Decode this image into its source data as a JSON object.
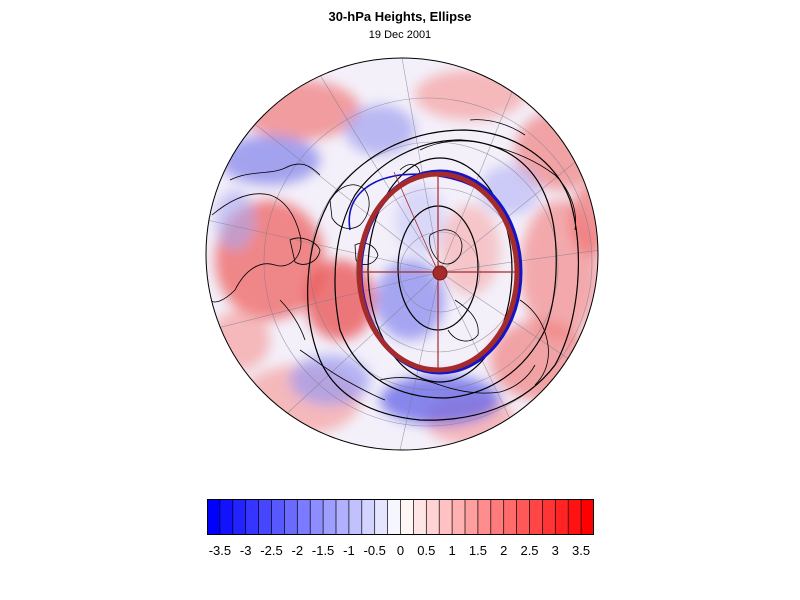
{
  "title": "30-hPa Heights, Ellipse",
  "subtitle": "19 Dec 2001",
  "map": {
    "projection": "polar-orthographic",
    "hemisphere": "northern",
    "field": "30-hPa height anomaly (shaded)",
    "overlays": [
      "coastlines",
      "graticule",
      "height-contours",
      "fitted-ellipse",
      "ellipse-axes",
      "ellipse-center-dot"
    ],
    "ellipse_color": "#a52a2a",
    "contour_color": "#000000",
    "secondary_contour_color": "#1010c0"
  },
  "colorbar": {
    "min": -3.75,
    "max": 3.75,
    "step": 0.25,
    "negative_color": "#0000ff",
    "neutral_color": "#ffffff",
    "positive_color": "#ff0000",
    "tick_labels": [
      "-3.5",
      "-3",
      "-2.5",
      "-2",
      "-1.5",
      "-1",
      "-0.5",
      "0",
      "0.5",
      "1",
      "1.5",
      "2",
      "2.5",
      "3",
      "3.5"
    ]
  }
}
